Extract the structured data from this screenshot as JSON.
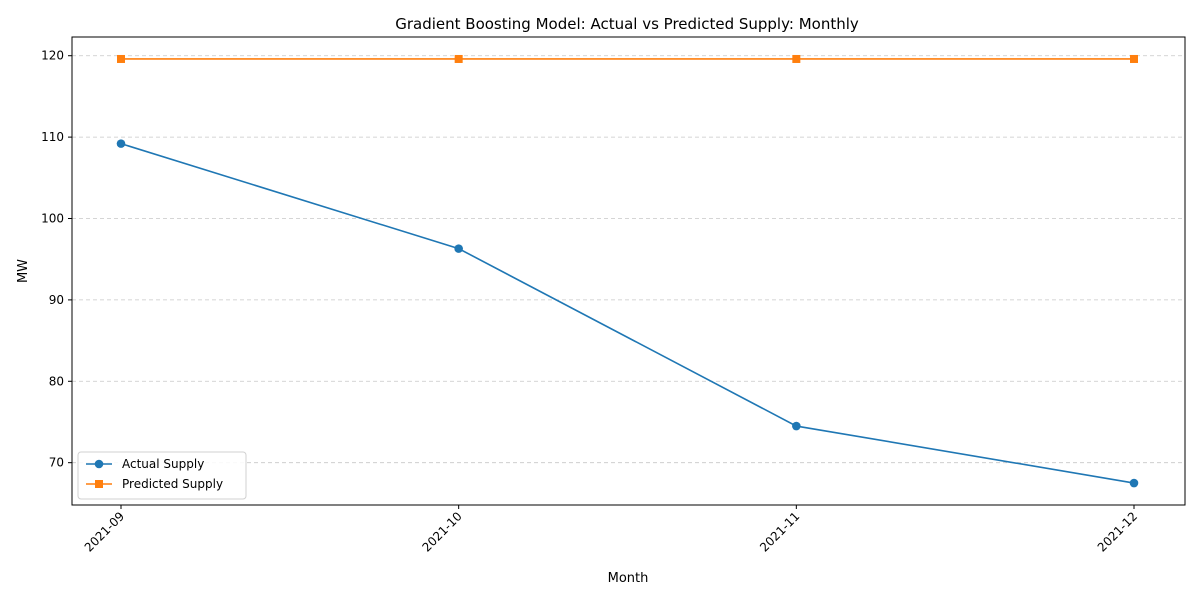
{
  "chart_data": {
    "type": "line",
    "title": "Gradient Boosting Model: Actual vs Predicted Supply: Monthly",
    "xlabel": "Month",
    "ylabel": "MW",
    "categories": [
      "2021-09",
      "2021-10",
      "2021-11",
      "2021-12"
    ],
    "series": [
      {
        "name": "Actual Supply",
        "values": [
          109.2,
          96.3,
          74.5,
          67.5
        ],
        "color": "#1f77b4",
        "marker": "circle"
      },
      {
        "name": "Predicted Supply",
        "values": [
          119.6,
          119.6,
          119.6,
          119.6
        ],
        "color": "#ff7f0e",
        "marker": "square"
      }
    ],
    "ylim": [
      64.8,
      122.3
    ],
    "yticks": [
      70,
      80,
      90,
      100,
      110,
      120
    ],
    "grid": "y-dashed",
    "legend_position": "lower-left",
    "xtick_rotation": 45
  }
}
